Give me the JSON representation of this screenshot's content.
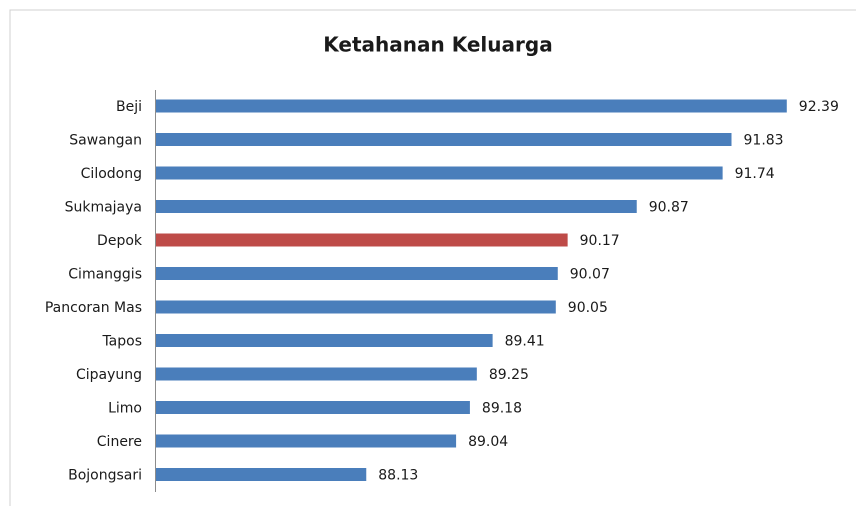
{
  "chart_data": {
    "type": "hbar",
    "title": "Ketahanan Keluarga",
    "categories": [
      "Beji",
      "Sawangan",
      "Cilodong",
      "Sukmajaya",
      "Depok",
      "Cimanggis",
      "Pancoran Mas",
      "Tapos",
      "Cipayung",
      "Limo",
      "Cinere",
      "Bojongsari"
    ],
    "values": [
      92.39,
      91.83,
      91.74,
      90.87,
      90.17,
      90.07,
      90.05,
      89.41,
      89.25,
      89.18,
      89.04,
      88.13
    ],
    "colors": [
      "#4a7ebb",
      "#4a7ebb",
      "#4a7ebb",
      "#4a7ebb",
      "#be4b48",
      "#4a7ebb",
      "#4a7ebb",
      "#4a7ebb",
      "#4a7ebb",
      "#4a7ebb",
      "#4a7ebb",
      "#4a7ebb"
    ],
    "xlim": [
      86,
      93
    ]
  }
}
